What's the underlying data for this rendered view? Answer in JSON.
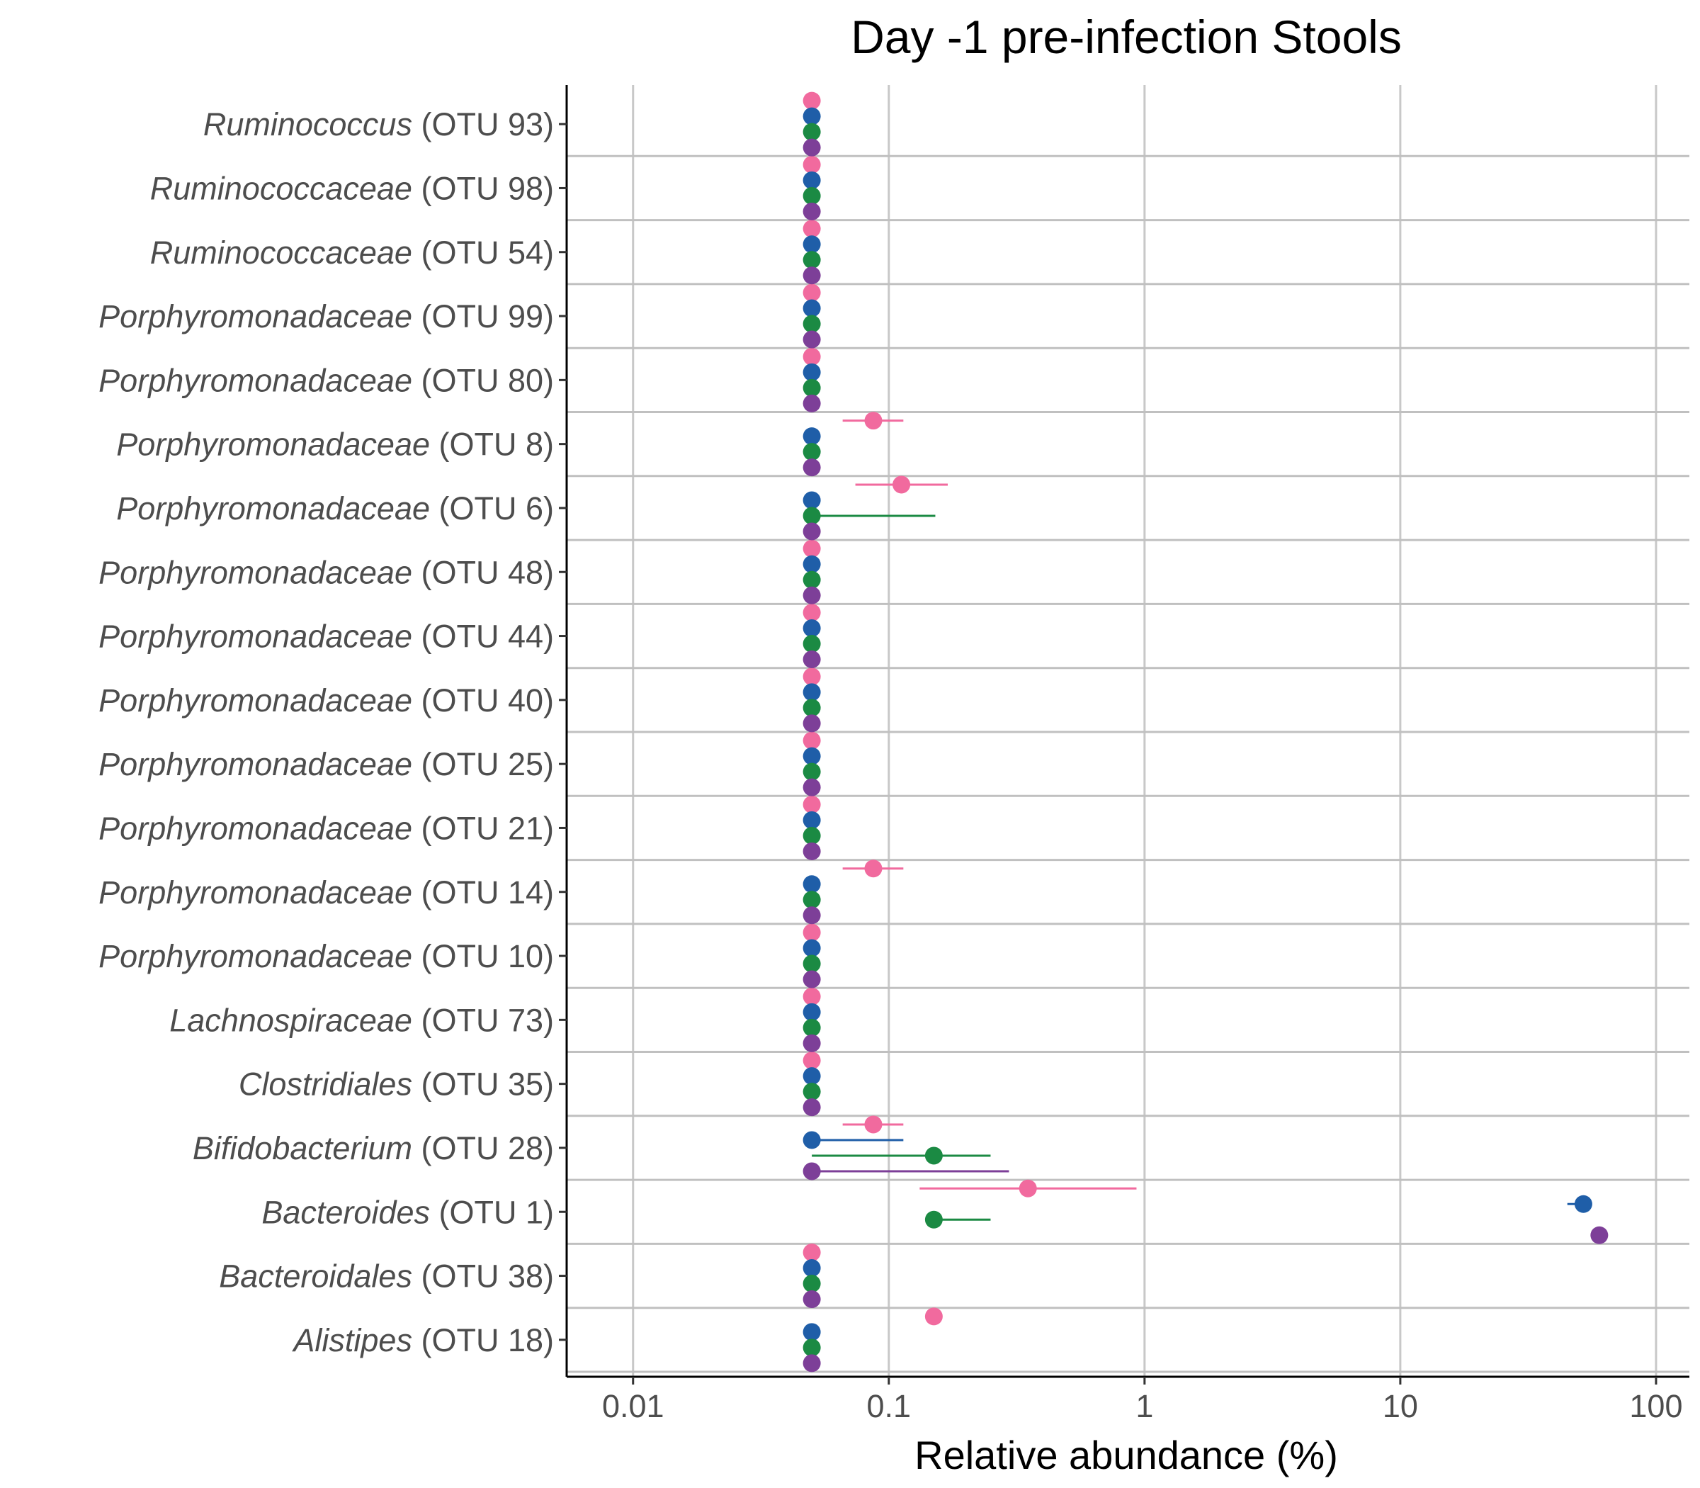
{
  "chart_data": {
    "type": "scatter",
    "title": "Day -1 pre-infection Stools",
    "xlabel": "Relative abundance (%)",
    "ylabel": "",
    "x_scale": "log10",
    "xlim": [
      0.0055,
      135
    ],
    "x_ticks": [
      {
        "value": 0.01,
        "label": "0.01"
      },
      {
        "value": 0.1,
        "label": "0.1"
      },
      {
        "value": 1,
        "label": "1"
      },
      {
        "value": 10,
        "label": "10"
      },
      {
        "value": 100,
        "label": "100"
      }
    ],
    "grid": "vertical major gridlines; horizontal separators between categories",
    "legend": "none",
    "categories": [
      {
        "genus": "Ruminococcus",
        "otu": "(OTU 93)"
      },
      {
        "genus": "Ruminococcaceae",
        "otu": "(OTU 98)"
      },
      {
        "genus": "Ruminococcaceae",
        "otu": "(OTU 54)"
      },
      {
        "genus": "Porphyromonadaceae",
        "otu": "(OTU 99)"
      },
      {
        "genus": "Porphyromonadaceae",
        "otu": "(OTU 80)"
      },
      {
        "genus": "Porphyromonadaceae",
        "otu": "(OTU 8)"
      },
      {
        "genus": "Porphyromonadaceae",
        "otu": "(OTU 6)"
      },
      {
        "genus": "Porphyromonadaceae",
        "otu": "(OTU 48)"
      },
      {
        "genus": "Porphyromonadaceae",
        "otu": "(OTU 44)"
      },
      {
        "genus": "Porphyromonadaceae",
        "otu": "(OTU 40)"
      },
      {
        "genus": "Porphyromonadaceae",
        "otu": "(OTU 25)"
      },
      {
        "genus": "Porphyromonadaceae",
        "otu": "(OTU 21)"
      },
      {
        "genus": "Porphyromonadaceae",
        "otu": "(OTU 14)"
      },
      {
        "genus": "Porphyromonadaceae",
        "otu": "(OTU 10)"
      },
      {
        "genus": "Lachnospiraceae",
        "otu": "(OTU 73)"
      },
      {
        "genus": "Clostridiales",
        "otu": "(OTU 35)"
      },
      {
        "genus": "Bifidobacterium",
        "otu": "(OTU 28)"
      },
      {
        "genus": "Bacteroides",
        "otu": "(OTU 1)"
      },
      {
        "genus": "Bacteroidales",
        "otu": "(OTU 38)"
      },
      {
        "genus": "Alistipes",
        "otu": "(OTU 18)"
      }
    ],
    "series": [
      {
        "color": "#f16a9e",
        "points": [
          {
            "x": 0.05
          },
          {
            "x": 0.05
          },
          {
            "x": 0.05
          },
          {
            "x": 0.05
          },
          {
            "x": 0.05
          },
          {
            "x": 0.087,
            "xmin": 0.066,
            "xmax": 0.114
          },
          {
            "x": 0.112,
            "xmin": 0.074,
            "xmax": 0.17
          },
          {
            "x": 0.05
          },
          {
            "x": 0.05
          },
          {
            "x": 0.05
          },
          {
            "x": 0.05
          },
          {
            "x": 0.05
          },
          {
            "x": 0.087,
            "xmin": 0.066,
            "xmax": 0.114
          },
          {
            "x": 0.05
          },
          {
            "x": 0.05
          },
          {
            "x": 0.05
          },
          {
            "x": 0.087,
            "xmin": 0.066,
            "xmax": 0.114
          },
          {
            "x": 0.35,
            "xmin": 0.132,
            "xmax": 0.93
          },
          {
            "x": 0.05
          },
          {
            "x": 0.15
          }
        ]
      },
      {
        "color": "#1f5ea8",
        "points": [
          {
            "x": 0.05
          },
          {
            "x": 0.05
          },
          {
            "x": 0.05
          },
          {
            "x": 0.05
          },
          {
            "x": 0.05
          },
          {
            "x": 0.05
          },
          {
            "x": 0.05
          },
          {
            "x": 0.05
          },
          {
            "x": 0.05
          },
          {
            "x": 0.05
          },
          {
            "x": 0.05
          },
          {
            "x": 0.05
          },
          {
            "x": 0.05
          },
          {
            "x": 0.05
          },
          {
            "x": 0.05
          },
          {
            "x": 0.05
          },
          {
            "x": 0.05,
            "xmin": 0.05,
            "xmax": 0.114
          },
          {
            "x": 52,
            "xmin": 45,
            "xmax": 54
          },
          {
            "x": 0.05
          },
          {
            "x": 0.05
          }
        ]
      },
      {
        "color": "#1b8a43",
        "points": [
          {
            "x": 0.05
          },
          {
            "x": 0.05
          },
          {
            "x": 0.05
          },
          {
            "x": 0.05
          },
          {
            "x": 0.05
          },
          {
            "x": 0.05
          },
          {
            "x": 0.05,
            "xmin": 0.05,
            "xmax": 0.152
          },
          {
            "x": 0.05
          },
          {
            "x": 0.05
          },
          {
            "x": 0.05
          },
          {
            "x": 0.05
          },
          {
            "x": 0.05
          },
          {
            "x": 0.05
          },
          {
            "x": 0.05
          },
          {
            "x": 0.05
          },
          {
            "x": 0.05
          },
          {
            "x": 0.15,
            "xmin": 0.05,
            "xmax": 0.25
          },
          {
            "x": 0.15,
            "xmin": 0.15,
            "xmax": 0.25
          },
          {
            "x": 0.05
          },
          {
            "x": 0.05
          }
        ]
      },
      {
        "color": "#7d3f98",
        "points": [
          {
            "x": 0.05
          },
          {
            "x": 0.05
          },
          {
            "x": 0.05
          },
          {
            "x": 0.05
          },
          {
            "x": 0.05
          },
          {
            "x": 0.05
          },
          {
            "x": 0.05
          },
          {
            "x": 0.05
          },
          {
            "x": 0.05
          },
          {
            "x": 0.05
          },
          {
            "x": 0.05
          },
          {
            "x": 0.05
          },
          {
            "x": 0.05
          },
          {
            "x": 0.05
          },
          {
            "x": 0.05
          },
          {
            "x": 0.05
          },
          {
            "x": 0.05,
            "xmin": 0.05,
            "xmax": 0.295
          },
          {
            "x": 60,
            "xmin": 56,
            "xmax": 64
          },
          {
            "x": 0.05
          },
          {
            "x": 0.05
          }
        ]
      }
    ]
  }
}
